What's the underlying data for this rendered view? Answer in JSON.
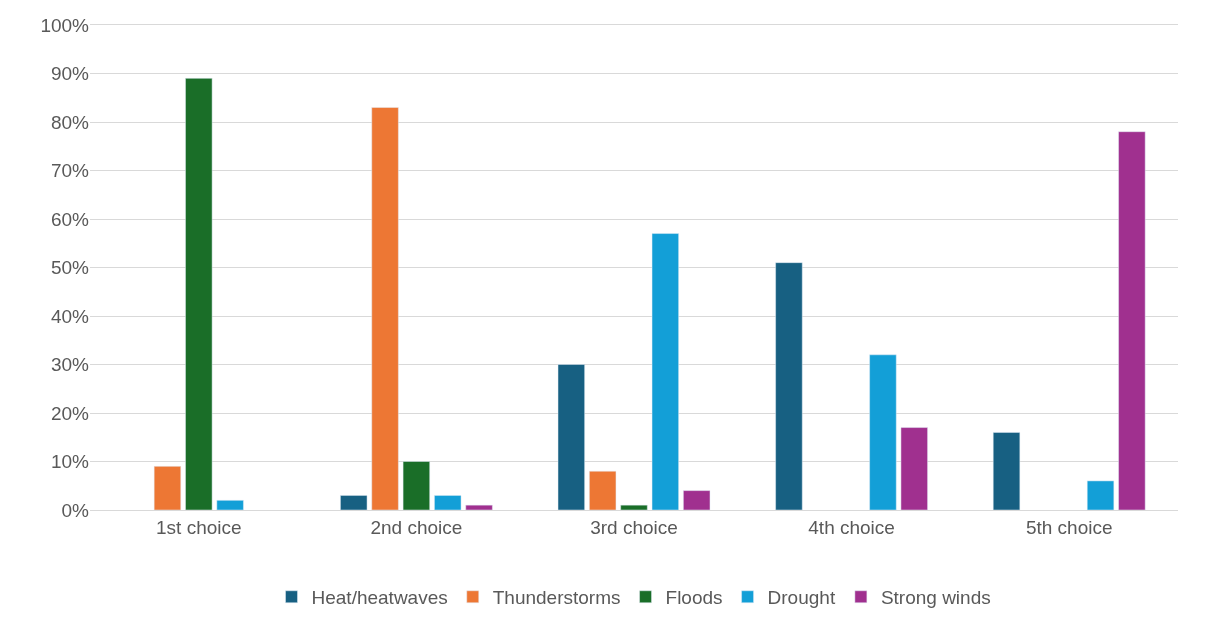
{
  "chart_data": {
    "type": "bar",
    "categories": [
      "1st choice",
      "2nd choice",
      "3rd choice",
      "4th choice",
      "5th choice"
    ],
    "series": [
      {
        "name": "Heat/heatwaves",
        "color": "#176082",
        "values": [
          null,
          3,
          30,
          51,
          16
        ]
      },
      {
        "name": "Thunderstorms",
        "color": "#ed7734",
        "values": [
          9,
          83,
          8,
          null,
          null
        ]
      },
      {
        "name": "Floods",
        "color": "#1a6e28",
        "values": [
          89,
          10,
          1,
          null,
          null
        ]
      },
      {
        "name": "Drought",
        "color": "#139fd7",
        "values": [
          2,
          3,
          57,
          32,
          6
        ]
      },
      {
        "name": "Strong winds",
        "color": "#a0308f",
        "values": [
          null,
          1,
          4,
          17,
          78
        ]
      }
    ],
    "ylim": [
      0,
      100
    ],
    "yticks": [
      {
        "value": 0,
        "label": "0%"
      },
      {
        "value": 10,
        "label": "10%"
      },
      {
        "value": 20,
        "label": "20%"
      },
      {
        "value": 30,
        "label": "30%"
      },
      {
        "value": 40,
        "label": "40%"
      },
      {
        "value": 50,
        "label": "50%"
      },
      {
        "value": 60,
        "label": "60%"
      },
      {
        "value": 70,
        "label": "70%"
      },
      {
        "value": 80,
        "label": "80%"
      },
      {
        "value": 90,
        "label": "90%"
      },
      {
        "value": 100,
        "label": "100%"
      }
    ],
    "grid": "y",
    "legend": "bottom"
  }
}
